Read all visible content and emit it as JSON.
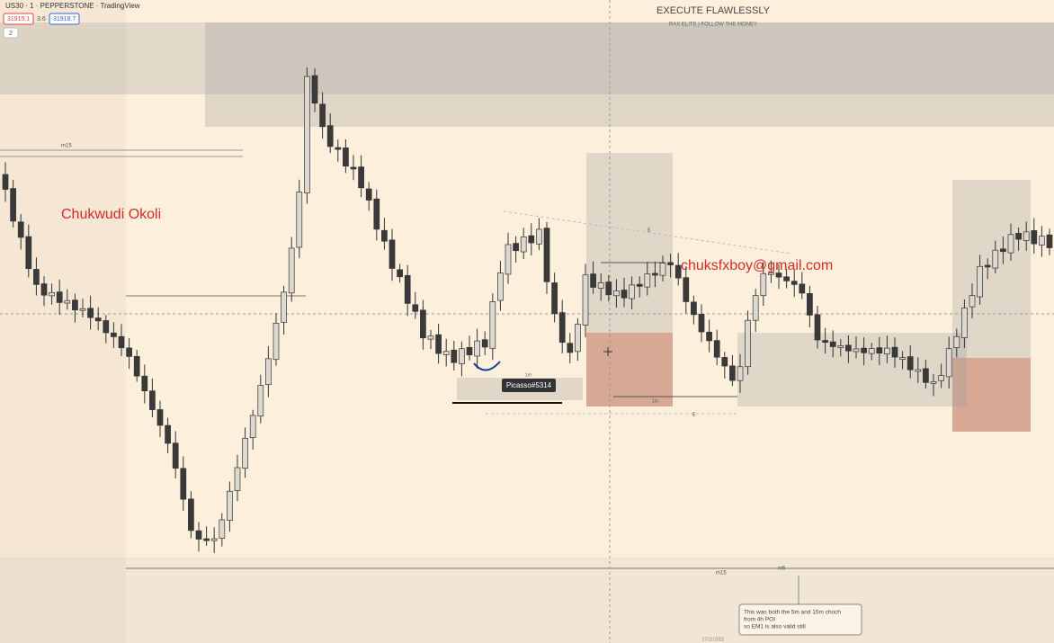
{
  "header": {
    "symbol": "US30 · 1 · PEPPERSTONE · TradingView",
    "bid": "31915.1",
    "spread": "3.6",
    "ask": "31918.7",
    "toggle": "2"
  },
  "banner": {
    "title": "EXECUTE FLAWLESSLY",
    "subtitle": "RAX ELITE | FOLLOW THE MONEY"
  },
  "watermarks": {
    "name": "Chukwudi Okoli",
    "email": "chuksfxboy@gmail.com"
  },
  "labels": {
    "left_level": "m15",
    "bottom_level": "m15",
    "bottom_level_2": "m5",
    "tag": "Picasso#5314",
    "one_m_a": "1m",
    "one_m_b": "1m",
    "pound_a": "£",
    "pound_b": "£",
    "date": "27/11/2022"
  },
  "note": {
    "lines": [
      "This was both the 5m and 15m choch",
      "from 4h POI",
      "so EM1 is also valid still"
    ]
  }
}
